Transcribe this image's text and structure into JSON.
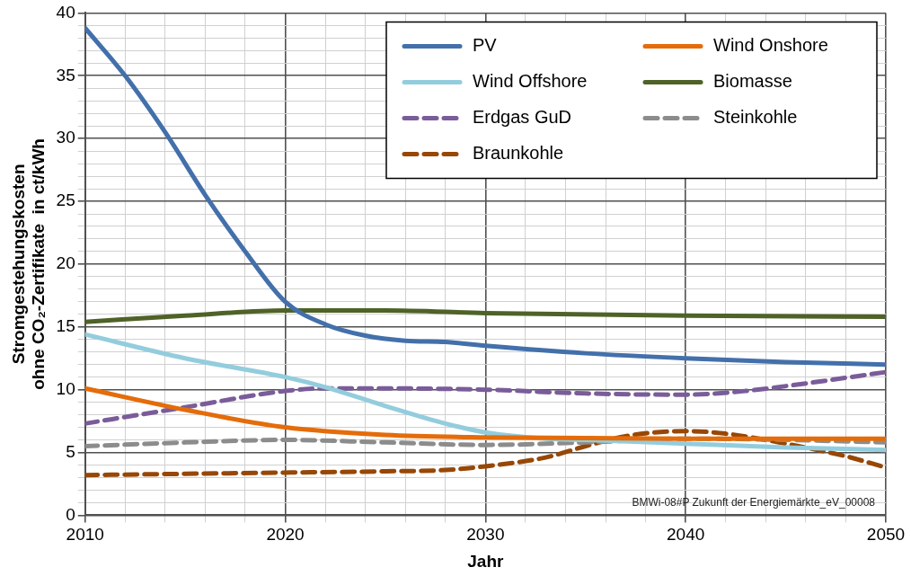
{
  "chart_data": {
    "type": "line",
    "xlabel": "Jahr",
    "ylabel": "Stromgestehungskosten\nohne CO₂-Zertifikate  in ct/kWh",
    "xlim": [
      2010,
      2050
    ],
    "xticks": [
      2010,
      {
        "value": 2012,
        "label": null
      },
      {
        "value": 2014,
        "label": null
      },
      {
        "value": 2016,
        "label": null
      },
      {
        "value": 2018,
        "label": null
      },
      2020,
      {
        "value": 2022,
        "label": null
      },
      {
        "value": 2024,
        "label": null
      },
      {
        "value": 2026,
        "label": null
      },
      {
        "value": 2028,
        "label": null
      },
      2030,
      {
        "value": 2032,
        "label": null
      },
      {
        "value": 2034,
        "label": null
      },
      {
        "value": 2036,
        "label": null
      },
      {
        "value": 2038,
        "label": null
      },
      2040,
      {
        "value": 2042,
        "label": null
      },
      {
        "value": 2044,
        "label": null
      },
      {
        "value": 2046,
        "label": null
      },
      {
        "value": 2048,
        "label": null
      },
      2050
    ],
    "ylim": [
      0,
      40
    ],
    "yticks": [
      0,
      {
        "value": 1,
        "label": null
      },
      {
        "value": 2,
        "label": null
      },
      {
        "value": 3,
        "label": null
      },
      {
        "value": 4,
        "label": null
      },
      5,
      {
        "value": 6,
        "label": null
      },
      {
        "value": 7,
        "label": null
      },
      {
        "value": 8,
        "label": null
      },
      {
        "value": 9,
        "label": null
      },
      10,
      {
        "value": 11,
        "label": null
      },
      {
        "value": 12,
        "label": null
      },
      {
        "value": 13,
        "label": null
      },
      {
        "value": 14,
        "label": null
      },
      15,
      {
        "value": 16,
        "label": null
      },
      {
        "value": 17,
        "label": null
      },
      {
        "value": 18,
        "label": null
      },
      {
        "value": 19,
        "label": null
      },
      20,
      {
        "value": 21,
        "label": null
      },
      {
        "value": 22,
        "label": null
      },
      {
        "value": 23,
        "label": null
      },
      {
        "value": 24,
        "label": null
      },
      25,
      {
        "value": 26,
        "label": null
      },
      {
        "value": 27,
        "label": null
      },
      {
        "value": 28,
        "label": null
      },
      {
        "value": 29,
        "label": null
      },
      30,
      {
        "value": 31,
        "label": null
      },
      {
        "value": 32,
        "label": null
      },
      {
        "value": 33,
        "label": null
      },
      {
        "value": 34,
        "label": null
      },
      35,
      {
        "value": 36,
        "label": null
      },
      {
        "value": 37,
        "label": null
      },
      {
        "value": 38,
        "label": null
      },
      {
        "value": 39,
        "label": null
      },
      40
    ],
    "grid": true,
    "legend": "top right",
    "marker": "none",
    "series": [
      {
        "name": "PV",
        "color": "#4370ab",
        "line_style": "solid",
        "x": [
          2010,
          2012,
          2014,
          2016,
          2018,
          2020,
          2022,
          2024,
          2026,
          2028,
          2030,
          2035,
          2040,
          2045,
          2050
        ],
        "values": [
          38.8,
          35,
          30.5,
          25.5,
          21,
          17,
          15.2,
          14.3,
          13.9,
          13.8,
          13.5,
          12.9,
          12.5,
          12.2,
          12
        ]
      },
      {
        "name": "Wind Onshore",
        "color": "#e46c0a",
        "line_style": "solid",
        "x": [
          2010,
          2015,
          2020,
          2025,
          2030,
          2040,
          2050
        ],
        "values": [
          10.1,
          8.4,
          7,
          6.4,
          6.2,
          6.1,
          6.1
        ]
      },
      {
        "name": "Wind Offshore",
        "color": "#93cddd",
        "line_style": "solid",
        "x": [
          2010,
          2015,
          2020,
          2022,
          2025,
          2028,
          2030,
          2033,
          2035,
          2040,
          2045,
          2050
        ],
        "values": [
          14.4,
          12.5,
          11,
          10.2,
          8.7,
          7.3,
          6.6,
          6.1,
          6,
          5.7,
          5.4,
          5.2
        ]
      },
      {
        "name": "Biomasse",
        "color": "#4f6228",
        "line_style": "solid",
        "x": [
          2010,
          2015,
          2020,
          2025,
          2030,
          2040,
          2050
        ],
        "values": [
          15.4,
          15.9,
          16.3,
          16.3,
          16.1,
          15.9,
          15.8
        ]
      },
      {
        "name": "Erdgas GuD",
        "color": "#7a5c9a",
        "line_style": "dashed",
        "x": [
          2010,
          2015,
          2020,
          2022,
          2025,
          2030,
          2035,
          2040,
          2043,
          2046,
          2050
        ],
        "values": [
          7.3,
          8.6,
          9.9,
          10.1,
          10.1,
          10,
          9.7,
          9.6,
          9.9,
          10.5,
          11.4
        ]
      },
      {
        "name": "Steinkohle",
        "color": "#8c8c8c",
        "line_style": "dashed",
        "x": [
          2010,
          2015,
          2020,
          2025,
          2030,
          2035,
          2040,
          2045,
          2050
        ],
        "values": [
          5.5,
          5.8,
          6,
          5.8,
          5.6,
          5.8,
          6.1,
          6,
          5.8
        ]
      },
      {
        "name": "Braunkohle",
        "color": "#974706",
        "line_style": "dashed",
        "x": [
          2010,
          2015,
          2020,
          2025,
          2028,
          2030,
          2033,
          2035,
          2037,
          2040,
          2042,
          2045,
          2048,
          2050
        ],
        "values": [
          3.2,
          3.3,
          3.4,
          3.5,
          3.6,
          3.9,
          4.6,
          5.5,
          6.3,
          6.7,
          6.5,
          5.7,
          4.7,
          3.8
        ]
      }
    ],
    "annotations": [
      "BMWi-08#P Zukunft der Energiemärkte_eV_00008"
    ]
  }
}
